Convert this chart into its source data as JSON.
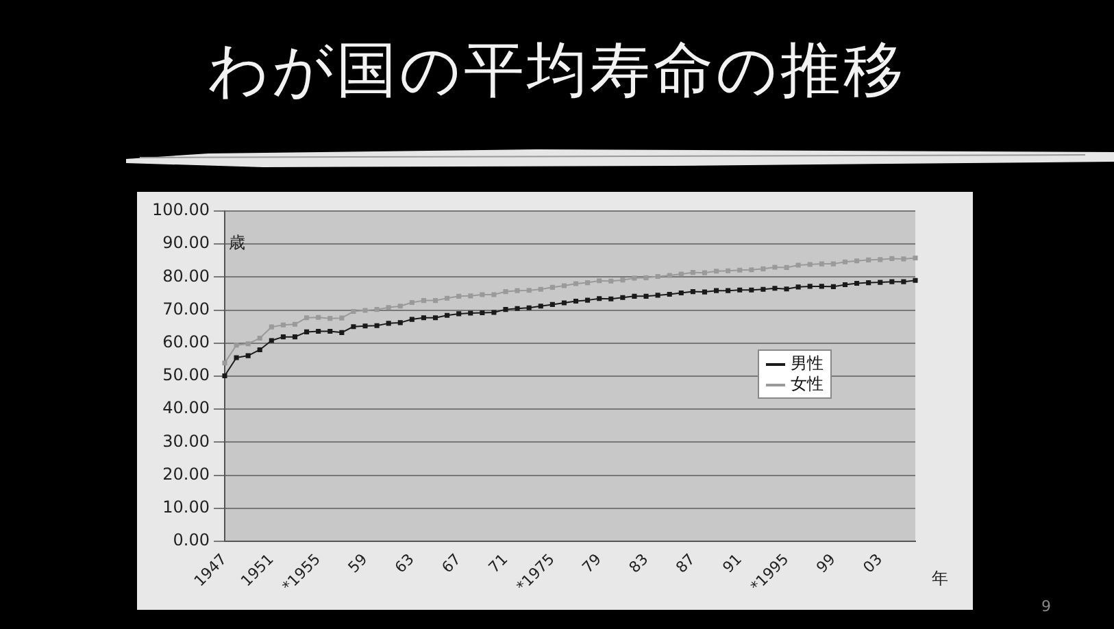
{
  "chart_data": {
    "type": "line",
    "title": "わが国の平均寿命の推移",
    "xlabel": "年",
    "ylabel": "歳",
    "categories": [
      "1947",
      null,
      null,
      null,
      "1951",
      null,
      null,
      null,
      "*1955",
      null,
      null,
      null,
      "59",
      null,
      null,
      null,
      "63",
      null,
      null,
      null,
      "67",
      null,
      null,
      null,
      "71",
      null,
      null,
      null,
      "*1975",
      null,
      null,
      null,
      "79",
      null,
      null,
      null,
      "83",
      null,
      null,
      null,
      "87",
      null,
      null,
      null,
      "91",
      null,
      null,
      null,
      "*1995",
      null,
      null,
      null,
      "99",
      null,
      null,
      null,
      "03",
      null,
      null,
      null
    ],
    "series": [
      {
        "name": "男性",
        "color": "#1a1a1a",
        "values": [
          50.1,
          55.6,
          56.2,
          58.0,
          60.8,
          61.9,
          61.9,
          63.4,
          63.6,
          63.6,
          63.2,
          65.0,
          65.2,
          65.3,
          66.0,
          66.2,
          67.2,
          67.7,
          67.7,
          68.4,
          68.9,
          69.1,
          69.2,
          69.3,
          70.2,
          70.5,
          70.7,
          71.2,
          71.7,
          72.2,
          72.7,
          73.0,
          73.5,
          73.4,
          73.8,
          74.2,
          74.2,
          74.5,
          74.8,
          75.2,
          75.6,
          75.5,
          75.9,
          75.9,
          76.1,
          76.1,
          76.3,
          76.6,
          76.4,
          77.0,
          77.2,
          77.2,
          77.1,
          77.7,
          78.1,
          78.3,
          78.4,
          78.6,
          78.6,
          79.0
        ]
      },
      {
        "name": "女性",
        "color": "#9a9a9a",
        "values": [
          54.0,
          59.4,
          59.8,
          61.5,
          64.9,
          65.5,
          65.7,
          67.7,
          67.8,
          67.5,
          67.6,
          69.6,
          69.9,
          70.2,
          70.8,
          71.2,
          72.3,
          72.9,
          72.9,
          73.6,
          74.2,
          74.3,
          74.7,
          74.7,
          75.6,
          75.9,
          76.0,
          76.3,
          76.9,
          77.4,
          78.0,
          78.3,
          78.9,
          78.8,
          79.1,
          79.7,
          79.8,
          80.2,
          80.5,
          80.9,
          81.4,
          81.3,
          81.8,
          81.9,
          82.1,
          82.2,
          82.5,
          83.0,
          82.9,
          83.6,
          83.8,
          84.0,
          84.0,
          84.6,
          84.9,
          85.2,
          85.3,
          85.6,
          85.5,
          85.8
        ]
      }
    ],
    "ylim": [
      0,
      100
    ],
    "yticks": [
      {
        "value": 0,
        "label": "0.00"
      },
      {
        "value": 10,
        "label": "10.00"
      },
      {
        "value": 20,
        "label": "20.00"
      },
      {
        "value": 30,
        "label": "30.00"
      },
      {
        "value": 40,
        "label": "40.00"
      },
      {
        "value": 50,
        "label": "50.00"
      },
      {
        "value": 60,
        "label": "60.00"
      },
      {
        "value": 70,
        "label": "70.00"
      },
      {
        "value": 80,
        "label": "80.00"
      },
      {
        "value": 90,
        "label": "90.00"
      },
      {
        "value": 100,
        "label": "100.00"
      }
    ],
    "grid": "y",
    "legend": "right",
    "marker": "square",
    "line_style": "solid",
    "annotations": [
      "9"
    ]
  }
}
